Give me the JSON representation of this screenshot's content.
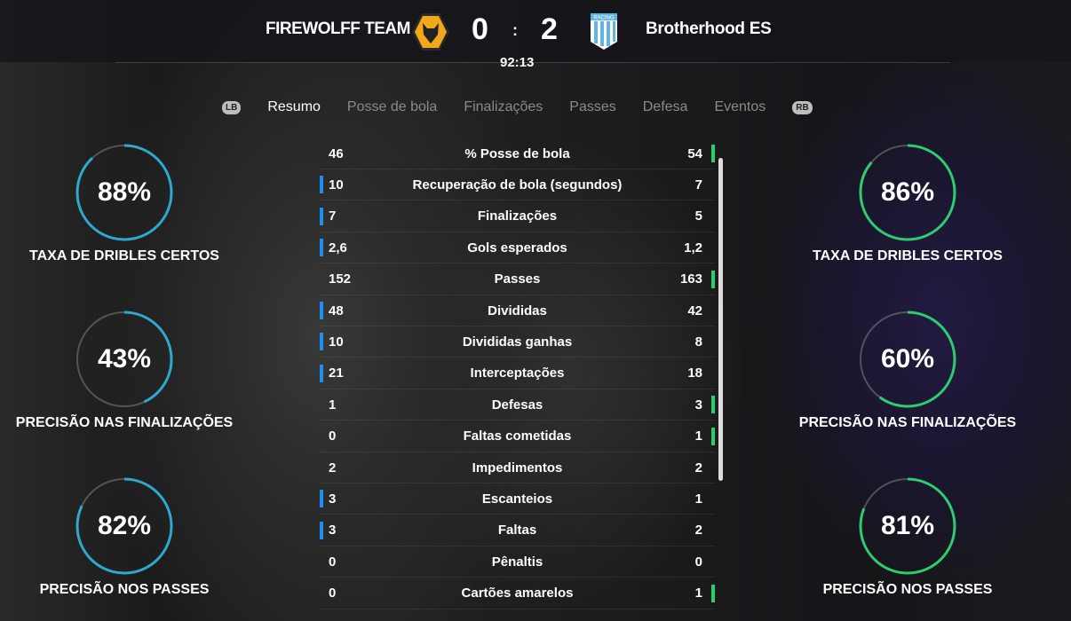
{
  "header": {
    "home_team": "FIREWOLFF TEAM",
    "away_team": "Brotherhood ES",
    "home_score": "0",
    "away_score": "2",
    "separator": ":",
    "clock": "92:13",
    "home_badge_icon": "wolf-crest-icon",
    "away_badge_icon": "racing-crest-icon",
    "away_badge_text": "RACING"
  },
  "tabs": {
    "lb": "LB",
    "rb": "RB",
    "items": [
      "Resumo",
      "Posse de bola",
      "Finalizações",
      "Passes",
      "Defesa",
      "Eventos"
    ],
    "active": "Resumo"
  },
  "colors": {
    "home": "#1e8ff0",
    "away": "#22d36a",
    "home_ring": "#2fa8d0",
    "away_ring": "#2ecc71"
  },
  "stats": [
    {
      "label": "% Posse de bola",
      "home": "46",
      "away": "54",
      "leader": "away"
    },
    {
      "label": "Recuperação de bola (segundos)",
      "home": "10",
      "away": "7",
      "leader": "home"
    },
    {
      "label": "Finalizações",
      "home": "7",
      "away": "5",
      "leader": "home"
    },
    {
      "label": "Gols esperados",
      "home": "2,6",
      "away": "1,2",
      "leader": "home"
    },
    {
      "label": "Passes",
      "home": "152",
      "away": "163",
      "leader": "away"
    },
    {
      "label": "Divididas",
      "home": "48",
      "away": "42",
      "leader": "home"
    },
    {
      "label": "Divididas ganhas",
      "home": "10",
      "away": "8",
      "leader": "home"
    },
    {
      "label": "Interceptações",
      "home": "21",
      "away": "18",
      "leader": "home"
    },
    {
      "label": "Defesas",
      "home": "1",
      "away": "3",
      "leader": "away"
    },
    {
      "label": "Faltas cometidas",
      "home": "0",
      "away": "1",
      "leader": "away"
    },
    {
      "label": "Impedimentos",
      "home": "2",
      "away": "2",
      "leader": "none"
    },
    {
      "label": "Escanteios",
      "home": "3",
      "away": "1",
      "leader": "home"
    },
    {
      "label": "Faltas",
      "home": "3",
      "away": "2",
      "leader": "home"
    },
    {
      "label": "Pênaltis",
      "home": "0",
      "away": "0",
      "leader": "none"
    },
    {
      "label": "Cartões amarelos",
      "home": "0",
      "away": "1",
      "leader": "away"
    }
  ],
  "rings": {
    "home": [
      {
        "value": 88,
        "text": "88%",
        "label": "TAXA DE DRIBLES CERTOS"
      },
      {
        "value": 43,
        "text": "43%",
        "label": "PRECISÃO NAS FINALIZAÇÕES"
      },
      {
        "value": 82,
        "text": "82%",
        "label": "PRECISÃO NOS PASSES"
      }
    ],
    "away": [
      {
        "value": 86,
        "text": "86%",
        "label": "TAXA DE DRIBLES CERTOS"
      },
      {
        "value": 60,
        "text": "60%",
        "label": "PRECISÃO NAS FINALIZAÇÕES"
      },
      {
        "value": 81,
        "text": "81%",
        "label": "PRECISÃO NOS PASSES"
      }
    ]
  }
}
